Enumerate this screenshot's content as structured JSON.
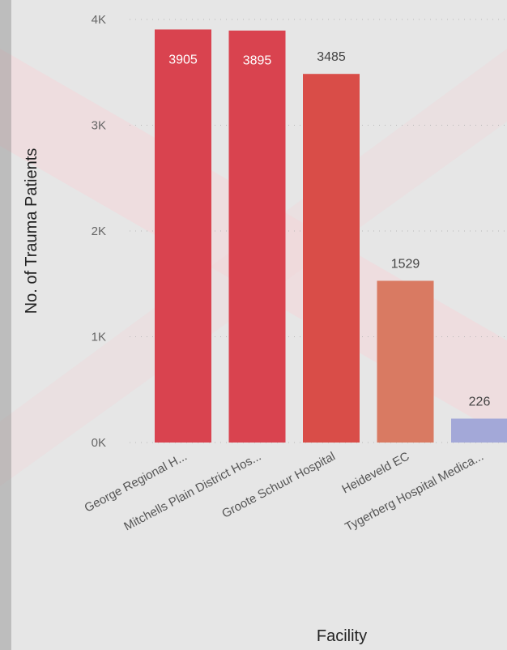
{
  "chart_data": {
    "type": "bar",
    "xlabel": "Facility",
    "ylabel": "No. of Trauma Patients",
    "ylim": [
      0,
      4000
    ],
    "yticks": [
      {
        "value": 0,
        "label": "0K"
      },
      {
        "value": 1000,
        "label": "1K"
      },
      {
        "value": 2000,
        "label": "2K"
      },
      {
        "value": 3000,
        "label": "3K"
      },
      {
        "value": 4000,
        "label": "4K"
      }
    ],
    "categories": [
      "George Regional H...",
      "Mitchells Plain District Hos...",
      "Groote Schuur Hospital",
      "Heideveld EC",
      "Tygerberg Hospital Medica..."
    ],
    "values": [
      3905,
      3895,
      3485,
      1529,
      226
    ],
    "data_labels": [
      "3905",
      "3895",
      "3485",
      "1529",
      "226"
    ],
    "bar_colors": [
      "#d9434f",
      "#d9434f",
      "#d94d48",
      "#d97a62",
      "#a3a8d8"
    ],
    "grid": true,
    "legend": "none"
  }
}
